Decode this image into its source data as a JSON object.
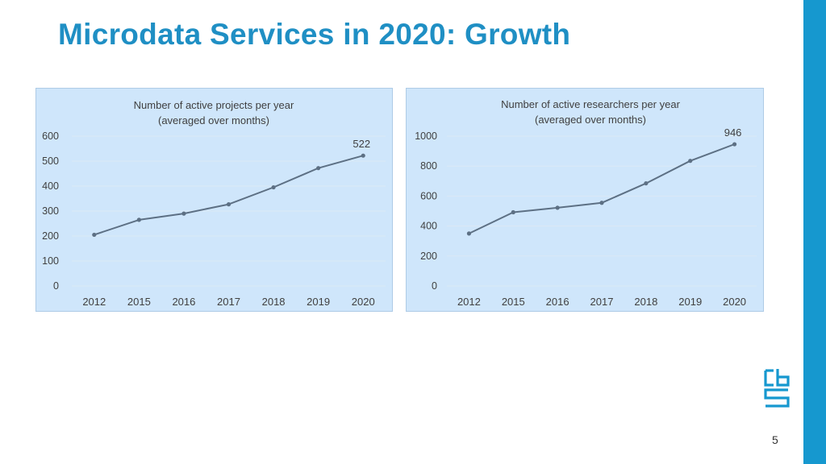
{
  "slide": {
    "title": "Microdata Services in 2020: Growth",
    "page_number": "5",
    "logo_icon": "cbs-logo-icon"
  },
  "colors": {
    "title": "#1f8fc4",
    "side_bar": "#1698cf",
    "chart_background": "#cfe6fb",
    "gridline": "#dbe9f6",
    "series_line": "#5d7084",
    "text": "#404040"
  },
  "chart_data": [
    {
      "type": "line",
      "title": "Number of active projects per year",
      "subtitle": "(averaged over months)",
      "categories": [
        "2012",
        "2015",
        "2016",
        "2017",
        "2018",
        "2019",
        "2020"
      ],
      "values": [
        205,
        265,
        290,
        327,
        395,
        472,
        522
      ],
      "ylim": [
        0,
        600
      ],
      "yticks": [
        "0",
        "100",
        "200",
        "300",
        "400",
        "500",
        "600"
      ],
      "data_labels": [
        {
          "index": 6,
          "text": "522"
        }
      ],
      "xlabel": "",
      "ylabel": "",
      "grid": true,
      "legend": "none"
    },
    {
      "type": "line",
      "title": "Number of active researchers per year",
      "subtitle": "(averaged over months)",
      "categories": [
        "2012",
        "2015",
        "2016",
        "2017",
        "2018",
        "2019",
        "2020"
      ],
      "values": [
        350,
        492,
        522,
        555,
        685,
        835,
        946
      ],
      "ylim": [
        0,
        1000
      ],
      "yticks": [
        "0",
        "200",
        "400",
        "600",
        "800",
        "1000"
      ],
      "data_labels": [
        {
          "index": 6,
          "text": "946"
        }
      ],
      "xlabel": "",
      "ylabel": "",
      "grid": true,
      "legend": "none"
    }
  ]
}
